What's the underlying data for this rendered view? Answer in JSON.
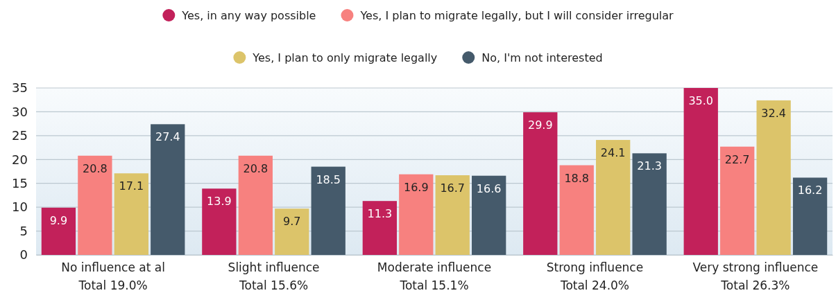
{
  "chart_data": {
    "type": "bar",
    "categories": [
      "No influence at al\nTotal 19.0%",
      "Slight influence\nTotal 15.6%",
      "Moderate influence\nTotal 15.1%",
      "Strong influence\nTotal 24.0%",
      "Very strong influence\nTotal 26.3%"
    ],
    "series": [
      {
        "name": "Yes, in any way possible",
        "color": "#c2215a",
        "values": [
          9.9,
          13.9,
          11.3,
          29.9,
          35.0
        ],
        "value_labels": [
          "9.9",
          "13.9",
          "11.3",
          "29.9",
          "35.0"
        ]
      },
      {
        "name": "Yes, I plan to migrate legally, but I will consider irregular",
        "color": "#f7817f",
        "values": [
          20.8,
          20.8,
          16.9,
          18.8,
          22.7
        ],
        "value_labels": [
          "20.8",
          "20.8",
          "16.9",
          "18.8",
          "22.7"
        ]
      },
      {
        "name": "Yes, I plan to only migrate legally",
        "color": "#dcc46a",
        "values": [
          17.1,
          9.7,
          16.7,
          24.1,
          32.4
        ],
        "value_labels": [
          "17.1",
          "9.7",
          "16.7",
          "24.1",
          "32.4"
        ]
      },
      {
        "name": "No, I'm not interested",
        "color": "#455a6b",
        "values": [
          27.4,
          18.5,
          16.6,
          21.3,
          16.2
        ],
        "value_labels": [
          "27.4",
          "18.5",
          "16.6",
          "21.3",
          "16.2"
        ]
      }
    ],
    "ylim": [
      0,
      35
    ],
    "yticks": [
      0,
      5,
      10,
      15,
      20,
      25,
      30,
      35
    ],
    "grid": "y",
    "legend": "top"
  }
}
